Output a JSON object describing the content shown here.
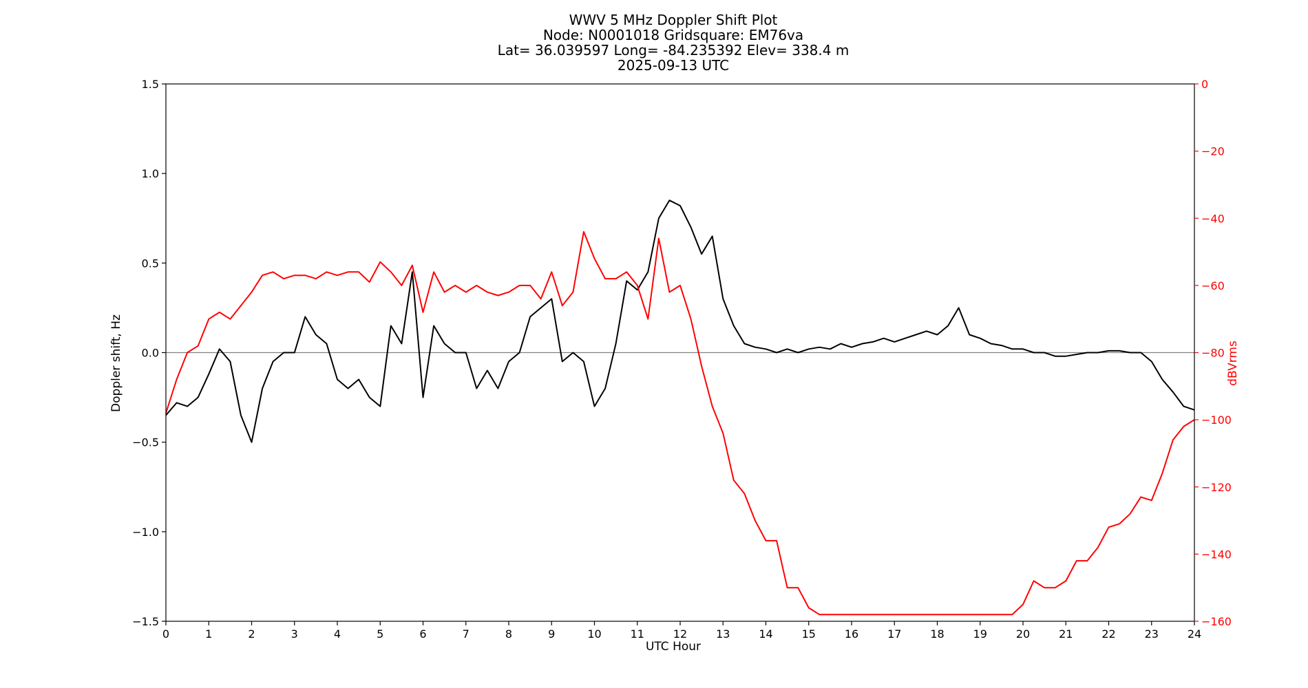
{
  "header": {
    "title_line1": "WWV 5 MHz Doppler Shift Plot",
    "title_line2": "Node:  N0001018     Gridsquare:  EM76va",
    "title_line3": "Lat= 36.039597    Long= -84.235392    Elev= 338.4 m",
    "title_line4": "2025-09-13  UTC"
  },
  "colors": {
    "doppler": "#000000",
    "power": "#ff0000",
    "zero_line": "#808080",
    "axis": "#000000"
  },
  "chart_data": {
    "type": "line",
    "title": "WWV 5 MHz Doppler Shift Plot",
    "xlabel": "UTC Hour",
    "ylabel": "Doppler shift, Hz",
    "y2label": "dBVrms",
    "xlim": [
      0,
      24
    ],
    "ylim": [
      -1.5,
      1.5
    ],
    "y2lim": [
      -160,
      0
    ],
    "xticks": [
      "0",
      "1",
      "2",
      "3",
      "4",
      "5",
      "6",
      "7",
      "8",
      "9",
      "10",
      "11",
      "12",
      "13",
      "14",
      "15",
      "16",
      "17",
      "18",
      "19",
      "20",
      "21",
      "22",
      "23",
      "24"
    ],
    "yticks": [
      "1.5",
      "1.0",
      "0.5",
      "0.0",
      "−0.5",
      "−1.0",
      "−1.5"
    ],
    "y2ticks": [
      "0",
      "−20",
      "−40",
      "−60",
      "−80",
      "−100",
      "−120",
      "−140",
      "−160"
    ],
    "zero_line": 0,
    "series": [
      {
        "axis": "left",
        "x": [
          0,
          0.25,
          0.5,
          0.75,
          1,
          1.25,
          1.5,
          1.75,
          2,
          2.25,
          2.5,
          2.75,
          3,
          3.25,
          3.5,
          3.75,
          4,
          4.25,
          4.5,
          4.75,
          5,
          5.25,
          5.5,
          5.75,
          6,
          6.25,
          6.5,
          6.75,
          7,
          7.25,
          7.5,
          7.75,
          8,
          8.25,
          8.5,
          8.75,
          9,
          9.25,
          9.5,
          9.75,
          10,
          10.25,
          10.5,
          10.75,
          11,
          11.25,
          11.5,
          11.75,
          12,
          12.25,
          12.5,
          12.75,
          13,
          13.25,
          13.5,
          13.75,
          14,
          14.25,
          14.5,
          14.75,
          15,
          15.25,
          15.5,
          15.75,
          16,
          16.25,
          16.5,
          16.75,
          17,
          17.25,
          17.5,
          17.75,
          18,
          18.25,
          18.5,
          18.75,
          19,
          19.25,
          19.5,
          19.75,
          20,
          20.25,
          20.5,
          20.75,
          21,
          21.25,
          21.5,
          21.75,
          22,
          22.25,
          22.5,
          22.75,
          23,
          23.25,
          23.5,
          23.75,
          24
        ],
        "values": [
          -0.35,
          -0.28,
          -0.3,
          -0.25,
          -0.12,
          0.02,
          -0.05,
          -0.35,
          -0.5,
          -0.2,
          -0.05,
          0.0,
          0.0,
          0.2,
          0.1,
          0.05,
          -0.15,
          -0.2,
          -0.15,
          -0.25,
          -0.3,
          0.15,
          0.05,
          0.45,
          -0.25,
          0.15,
          0.05,
          0.0,
          0.0,
          -0.2,
          -0.1,
          -0.2,
          -0.05,
          0.0,
          0.2,
          0.25,
          0.3,
          -0.05,
          0.0,
          -0.05,
          -0.3,
          -0.2,
          0.05,
          0.4,
          0.35,
          0.45,
          0.75,
          0.85,
          0.82,
          0.7,
          0.55,
          0.65,
          0.3,
          0.15,
          0.05,
          0.03,
          0.02,
          0.0,
          0.02,
          0.0,
          0.02,
          0.03,
          0.02,
          0.05,
          0.03,
          0.05,
          0.06,
          0.08,
          0.06,
          0.08,
          0.1,
          0.12,
          0.1,
          0.15,
          0.25,
          0.1,
          0.08,
          0.05,
          0.04,
          0.02,
          0.02,
          0.0,
          0.0,
          -0.02,
          -0.02,
          -0.01,
          0.0,
          0.0,
          0.01,
          0.01,
          0.0,
          0.0,
          -0.05,
          -0.15,
          -0.22,
          -0.3,
          -0.32
        ]
      },
      {
        "axis": "right",
        "x": [
          0,
          0.25,
          0.5,
          0.75,
          1,
          1.25,
          1.5,
          1.75,
          2,
          2.25,
          2.5,
          2.75,
          3,
          3.25,
          3.5,
          3.75,
          4,
          4.25,
          4.5,
          4.75,
          5,
          5.25,
          5.5,
          5.75,
          6,
          6.25,
          6.5,
          6.75,
          7,
          7.25,
          7.5,
          7.75,
          8,
          8.25,
          8.5,
          8.75,
          9,
          9.25,
          9.5,
          9.75,
          10,
          10.25,
          10.5,
          10.75,
          11,
          11.25,
          11.5,
          11.75,
          12,
          12.25,
          12.5,
          12.75,
          13,
          13.25,
          13.5,
          13.75,
          14,
          14.25,
          14.5,
          14.75,
          15,
          15.25,
          19.75,
          20,
          20.25,
          20.5,
          20.75,
          21,
          21.25,
          21.5,
          21.75,
          22,
          22.25,
          22.5,
          22.75,
          23,
          23.25,
          23.5,
          23.75,
          24
        ],
        "values": [
          -98,
          -88,
          -80,
          -78,
          -70,
          -68,
          -70,
          -66,
          -62,
          -57,
          -56,
          -58,
          -57,
          -57,
          -58,
          -56,
          -57,
          -56,
          -56,
          -59,
          -53,
          -56,
          -60,
          -54,
          -68,
          -56,
          -62,
          -60,
          -62,
          -60,
          -62,
          -63,
          -62,
          -60,
          -60,
          -64,
          -56,
          -66,
          -62,
          -44,
          -52,
          -58,
          -58,
          -56,
          -60,
          -70,
          -46,
          -62,
          -60,
          -70,
          -84,
          -96,
          -104,
          -118,
          -122,
          -130,
          -136,
          -136,
          -150,
          -150,
          -156,
          -158,
          -158,
          -155,
          -148,
          -150,
          -150,
          -148,
          -142,
          -142,
          -138,
          -132,
          -131,
          -128,
          -123,
          -124,
          -116,
          -106,
          -102,
          -100
        ]
      }
    ]
  }
}
